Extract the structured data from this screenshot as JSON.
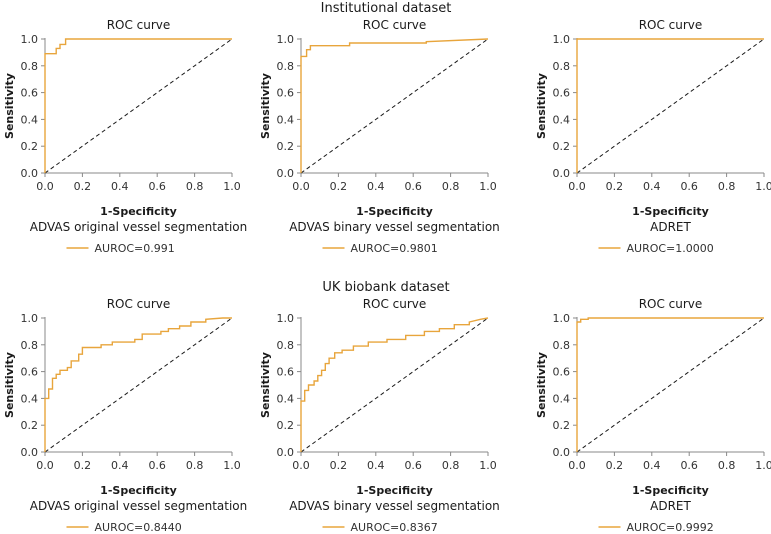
{
  "sections": [
    {
      "title": "Institutional dataset"
    },
    {
      "title": "UK biobank dataset"
    }
  ],
  "colors": {
    "roc": "#E8A53C",
    "diagonal": "#1a1a1a",
    "axis": "#888888"
  },
  "chart_data": [
    {
      "type": "line",
      "section": 0,
      "title": "ROC curve",
      "xlabel": "1-Specificity",
      "ylabel": "Sensitivity",
      "model": "ADVAS original vessel segmentation",
      "legend": "AUROC=0.991",
      "xlim": [
        0,
        1
      ],
      "ylim": [
        0,
        1
      ],
      "xticks": [
        "0.0",
        "0.2",
        "0.4",
        "0.6",
        "0.8",
        "1.0"
      ],
      "yticks": [
        "0.0",
        "0.2",
        "0.4",
        "0.6",
        "0.8",
        "1.0"
      ],
      "roc": {
        "x": [
          0,
          0,
          0,
          0.06,
          0.06,
          0.08,
          0.08,
          0.11,
          0.11,
          1.0
        ],
        "y": [
          0,
          0.89,
          0.89,
          0.89,
          0.93,
          0.93,
          0.96,
          0.96,
          1.0,
          1.0
        ]
      }
    },
    {
      "type": "line",
      "section": 0,
      "title": "ROC curve",
      "xlabel": "1-Specificity",
      "ylabel": "Sensitivity",
      "model": "ADVAS binary vessel segmentation",
      "legend": "AUROC=0.9801",
      "xlim": [
        0,
        1
      ],
      "ylim": [
        0,
        1
      ],
      "xticks": [
        "0.0",
        "0.2",
        "0.4",
        "0.6",
        "0.8",
        "1.0"
      ],
      "yticks": [
        "0.0",
        "0.2",
        "0.4",
        "0.6",
        "0.8",
        "1.0"
      ],
      "roc": {
        "x": [
          0,
          0,
          0,
          0.03,
          0.03,
          0.05,
          0.05,
          0.26,
          0.26,
          0.67,
          0.67,
          1.0
        ],
        "y": [
          0,
          0.87,
          0.87,
          0.87,
          0.92,
          0.92,
          0.95,
          0.95,
          0.97,
          0.97,
          0.98,
          1.0
        ]
      }
    },
    {
      "type": "line",
      "section": 0,
      "title": "ROC curve",
      "xlabel": "1-Specificity",
      "ylabel": "Sensitivity",
      "model": "ADRET",
      "legend": "AUROC=1.0000",
      "xlim": [
        0,
        1
      ],
      "ylim": [
        0,
        1
      ],
      "xticks": [
        "0.0",
        "0.2",
        "0.4",
        "0.6",
        "0.8",
        "1.0"
      ],
      "yticks": [
        "0.0",
        "0.2",
        "0.4",
        "0.6",
        "0.8",
        "1.0"
      ],
      "roc": {
        "x": [
          0,
          0,
          1.0
        ],
        "y": [
          0,
          1.0,
          1.0
        ]
      }
    },
    {
      "type": "line",
      "section": 1,
      "title": "ROC curve",
      "xlabel": "1-Specificity",
      "ylabel": "Sensitivity",
      "model": "ADVAS original vessel segmentation",
      "legend": "AUROC=0.8440",
      "xlim": [
        0,
        1
      ],
      "ylim": [
        0,
        1
      ],
      "xticks": [
        "0.0",
        "0.2",
        "0.4",
        "0.6",
        "0.8",
        "1.0"
      ],
      "yticks": [
        "0.0",
        "0.2",
        "0.4",
        "0.6",
        "0.8",
        "1.0"
      ],
      "roc": {
        "x": [
          0,
          0,
          0.02,
          0.02,
          0.04,
          0.04,
          0.06,
          0.06,
          0.08,
          0.08,
          0.12,
          0.12,
          0.14,
          0.14,
          0.18,
          0.18,
          0.2,
          0.2,
          0.3,
          0.3,
          0.36,
          0.36,
          0.48,
          0.48,
          0.52,
          0.52,
          0.62,
          0.62,
          0.66,
          0.66,
          0.72,
          0.72,
          0.78,
          0.78,
          0.86,
          0.86,
          0.95,
          1.0
        ],
        "y": [
          0,
          0.4,
          0.4,
          0.47,
          0.47,
          0.55,
          0.55,
          0.58,
          0.58,
          0.61,
          0.61,
          0.63,
          0.63,
          0.68,
          0.68,
          0.73,
          0.73,
          0.78,
          0.78,
          0.8,
          0.8,
          0.82,
          0.82,
          0.84,
          0.84,
          0.88,
          0.88,
          0.9,
          0.9,
          0.92,
          0.92,
          0.94,
          0.94,
          0.97,
          0.97,
          0.99,
          1.0,
          1.0
        ]
      }
    },
    {
      "type": "line",
      "section": 1,
      "title": "ROC curve",
      "xlabel": "1-Specificity",
      "ylabel": "Sensitivity",
      "model": "ADVAS binary vessel segmentation",
      "legend": "AUROC=0.8367",
      "xlim": [
        0,
        1
      ],
      "ylim": [
        0,
        1
      ],
      "xticks": [
        "0.0",
        "0.2",
        "0.4",
        "0.6",
        "0.8",
        "1.0"
      ],
      "yticks": [
        "0.0",
        "0.2",
        "0.4",
        "0.6",
        "0.8",
        "1.0"
      ],
      "roc": {
        "x": [
          0,
          0,
          0.02,
          0.02,
          0.04,
          0.04,
          0.07,
          0.07,
          0.09,
          0.09,
          0.11,
          0.11,
          0.13,
          0.13,
          0.15,
          0.15,
          0.18,
          0.18,
          0.22,
          0.22,
          0.28,
          0.28,
          0.36,
          0.36,
          0.46,
          0.46,
          0.56,
          0.56,
          0.66,
          0.66,
          0.74,
          0.74,
          0.82,
          0.82,
          0.9,
          0.9,
          0.96,
          1.0
        ],
        "y": [
          0,
          0.38,
          0.38,
          0.46,
          0.46,
          0.5,
          0.5,
          0.53,
          0.53,
          0.57,
          0.57,
          0.61,
          0.61,
          0.66,
          0.66,
          0.7,
          0.7,
          0.74,
          0.74,
          0.76,
          0.76,
          0.79,
          0.79,
          0.82,
          0.82,
          0.84,
          0.84,
          0.87,
          0.87,
          0.9,
          0.9,
          0.92,
          0.92,
          0.95,
          0.95,
          0.97,
          0.99,
          1.0
        ]
      }
    },
    {
      "type": "line",
      "section": 1,
      "title": "ROC curve",
      "xlabel": "1-Specificity",
      "ylabel": "Sensitivity",
      "model": "ADRET",
      "legend": "AUROC=0.9992",
      "xlim": [
        0,
        1
      ],
      "ylim": [
        0,
        1
      ],
      "xticks": [
        "0.0",
        "0.2",
        "0.4",
        "0.6",
        "0.8",
        "1.0"
      ],
      "yticks": [
        "0.0",
        "0.2",
        "0.4",
        "0.6",
        "0.8",
        "1.0"
      ],
      "roc": {
        "x": [
          0,
          0,
          0.02,
          0.02,
          0.06,
          0.06,
          1.0
        ],
        "y": [
          0,
          0.97,
          0.97,
          0.99,
          0.99,
          1.0,
          1.0
        ]
      }
    }
  ]
}
